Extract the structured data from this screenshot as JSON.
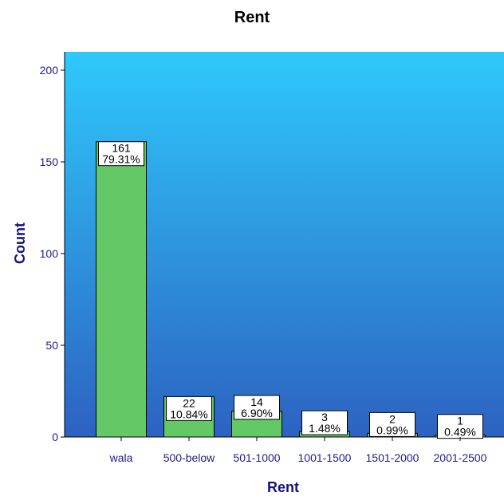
{
  "chart_data": {
    "type": "bar",
    "title": "Rent",
    "xlabel": "Rent",
    "ylabel": "Count",
    "categories": [
      "wala",
      "500-below",
      "501-1000",
      "1001-1500",
      "1501-2000",
      "2001-2500"
    ],
    "values": [
      161,
      22,
      14,
      3,
      2,
      1
    ],
    "percent_labels": [
      "79.31%",
      "10.84%",
      "6.90%",
      "1.48%",
      "0.99%",
      "0.49%"
    ],
    "ylim": [
      0,
      210
    ],
    "yticks": [
      0,
      50,
      100,
      150,
      200
    ],
    "grid": false,
    "legend": "none",
    "colors": {
      "bar_fill": "#64c866",
      "bar_stroke": "#000000",
      "background_top": "#2ec9fb",
      "background_bottom": "#2d62c1",
      "axis_text": "#1c1c8c",
      "axis_title": "#14147a",
      "label_box": "#ffffff"
    }
  }
}
